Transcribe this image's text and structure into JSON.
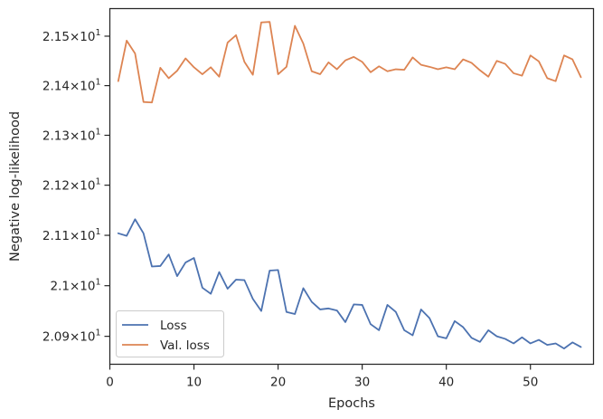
{
  "chart_data": {
    "type": "line",
    "xlabel": "Epochs",
    "ylabel": "Negative log-likelihood",
    "xlim": [
      0,
      57.5
    ],
    "ylim": [
      20.845,
      21.556
    ],
    "yscale": "log",
    "grid": false,
    "legend_position": "lower left",
    "x_ticks": [
      {
        "value": 0,
        "label": "0"
      },
      {
        "value": 10,
        "label": "10"
      },
      {
        "value": 20,
        "label": "20"
      },
      {
        "value": 30,
        "label": "30"
      },
      {
        "value": 40,
        "label": "40"
      },
      {
        "value": 50,
        "label": "50"
      }
    ],
    "y_ticks": [
      {
        "value": 20.9,
        "mantissa": "2.09",
        "exp": "1"
      },
      {
        "value": 21.0,
        "mantissa": "2.1",
        "exp": "1"
      },
      {
        "value": 21.1,
        "mantissa": "2.11",
        "exp": "1"
      },
      {
        "value": 21.2,
        "mantissa": "2.12",
        "exp": "1"
      },
      {
        "value": 21.3,
        "mantissa": "2.13",
        "exp": "1"
      },
      {
        "value": 21.4,
        "mantissa": "2.14",
        "exp": "1"
      },
      {
        "value": 21.5,
        "mantissa": "2.15",
        "exp": "1"
      }
    ],
    "x": [
      1,
      2,
      3,
      4,
      5,
      6,
      7,
      8,
      9,
      10,
      11,
      12,
      13,
      14,
      15,
      16,
      17,
      18,
      19,
      20,
      21,
      22,
      23,
      24,
      25,
      26,
      27,
      28,
      29,
      30,
      31,
      32,
      33,
      34,
      35,
      36,
      37,
      38,
      39,
      40,
      41,
      42,
      43,
      44,
      45,
      46,
      47,
      48,
      49,
      50,
      51,
      52,
      53,
      54,
      55,
      56
    ],
    "series": [
      {
        "name": "Loss",
        "color": "#4c72b0",
        "values": [
          21.104,
          21.099,
          21.132,
          21.104,
          21.038,
          21.039,
          21.062,
          21.019,
          21.046,
          21.055,
          20.996,
          20.984,
          21.027,
          20.994,
          21.012,
          21.011,
          20.974,
          20.95,
          21.03,
          21.031,
          20.948,
          20.944,
          20.995,
          20.968,
          20.953,
          20.955,
          20.951,
          20.928,
          20.963,
          20.962,
          20.924,
          20.912,
          20.962,
          20.948,
          20.912,
          20.902,
          20.953,
          20.936,
          20.9,
          20.896,
          20.93,
          20.918,
          20.897,
          20.889,
          20.912,
          20.9,
          20.895,
          20.886,
          20.898,
          20.886,
          20.893,
          20.883,
          20.886,
          20.876,
          20.888,
          20.879
        ]
      },
      {
        "name": "Val. loss",
        "color": "#dd8452",
        "values": [
          21.409,
          21.491,
          21.465,
          21.367,
          21.366,
          21.436,
          21.415,
          21.43,
          21.455,
          21.437,
          21.423,
          21.437,
          21.418,
          21.487,
          21.502,
          21.448,
          21.422,
          21.528,
          21.529,
          21.423,
          21.438,
          21.521,
          21.485,
          21.429,
          21.423,
          21.447,
          21.433,
          21.451,
          21.458,
          21.448,
          21.427,
          21.439,
          21.429,
          21.433,
          21.432,
          21.457,
          21.442,
          21.438,
          21.433,
          21.437,
          21.433,
          21.453,
          21.446,
          21.431,
          21.418,
          21.45,
          21.444,
          21.425,
          21.42,
          21.461,
          21.449,
          21.415,
          21.409,
          21.461,
          21.453,
          21.417
        ]
      }
    ]
  }
}
